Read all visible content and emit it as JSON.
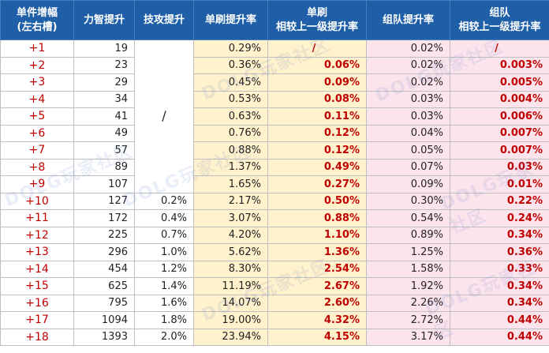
{
  "headers": {
    "col1_line1": "单件增幅",
    "col1_line2": "(左右槽)",
    "col2": "力智提升",
    "col3": "技攻提升",
    "col4": "单刷提升率",
    "col5_line1": "单刷",
    "col5_line2": "相较上一级提升率",
    "col6": "组队提升率",
    "col7_line1": "组队",
    "col7_line2": "相较上一级提升率"
  },
  "merged_skill_placeholder": "/",
  "watermark": "DOLG玩家社区",
  "rows": [
    {
      "level": "+1",
      "stat": "19",
      "skill": "",
      "solo": "0.29%",
      "solo_delta": "/",
      "team": "0.02%",
      "team_delta": "/"
    },
    {
      "level": "+2",
      "stat": "23",
      "skill": "",
      "solo": "0.36%",
      "solo_delta": "0.06%",
      "team": "0.02%",
      "team_delta": "0.003%"
    },
    {
      "level": "+3",
      "stat": "29",
      "skill": "",
      "solo": "0.45%",
      "solo_delta": "0.09%",
      "team": "0.02%",
      "team_delta": "0.005%"
    },
    {
      "level": "+4",
      "stat": "34",
      "skill": "",
      "solo": "0.53%",
      "solo_delta": "0.08%",
      "team": "0.03%",
      "team_delta": "0.004%"
    },
    {
      "level": "+5",
      "stat": "41",
      "skill": "",
      "solo": "0.63%",
      "solo_delta": "0.11%",
      "team": "0.03%",
      "team_delta": "0.006%"
    },
    {
      "level": "+6",
      "stat": "49",
      "skill": "",
      "solo": "0.76%",
      "solo_delta": "0.12%",
      "team": "0.04%",
      "team_delta": "0.007%"
    },
    {
      "level": "+7",
      "stat": "57",
      "skill": "",
      "solo": "0.88%",
      "solo_delta": "0.12%",
      "team": "0.05%",
      "team_delta": "0.007%"
    },
    {
      "level": "+8",
      "stat": "89",
      "skill": "",
      "solo": "1.37%",
      "solo_delta": "0.49%",
      "team": "0.07%",
      "team_delta": "0.03%"
    },
    {
      "level": "+9",
      "stat": "107",
      "skill": "",
      "solo": "1.65%",
      "solo_delta": "0.27%",
      "team": "0.09%",
      "team_delta": "0.01%"
    },
    {
      "level": "+10",
      "stat": "127",
      "skill": "0.2%",
      "solo": "2.17%",
      "solo_delta": "0.50%",
      "team": "0.30%",
      "team_delta": "0.22%"
    },
    {
      "level": "+11",
      "stat": "172",
      "skill": "0.4%",
      "solo": "3.07%",
      "solo_delta": "0.88%",
      "team": "0.54%",
      "team_delta": "0.24%"
    },
    {
      "level": "+12",
      "stat": "225",
      "skill": "0.7%",
      "solo": "4.20%",
      "solo_delta": "1.10%",
      "team": "0.89%",
      "team_delta": "0.34%"
    },
    {
      "level": "+13",
      "stat": "296",
      "skill": "1.0%",
      "solo": "5.62%",
      "solo_delta": "1.36%",
      "team": "1.25%",
      "team_delta": "0.36%"
    },
    {
      "level": "+14",
      "stat": "454",
      "skill": "1.2%",
      "solo": "8.30%",
      "solo_delta": "2.54%",
      "team": "1.58%",
      "team_delta": "0.33%"
    },
    {
      "level": "+15",
      "stat": "625",
      "skill": "1.4%",
      "solo": "11.19%",
      "solo_delta": "2.67%",
      "team": "1.92%",
      "team_delta": "0.34%"
    },
    {
      "level": "+16",
      "stat": "795",
      "skill": "1.6%",
      "solo": "14.07%",
      "solo_delta": "2.60%",
      "team": "2.26%",
      "team_delta": "0.34%"
    },
    {
      "level": "+17",
      "stat": "1094",
      "skill": "1.8%",
      "solo": "19.00%",
      "solo_delta": "4.32%",
      "team": "2.72%",
      "team_delta": "0.44%"
    },
    {
      "level": "+18",
      "stat": "1393",
      "skill": "2.0%",
      "solo": "23.94%",
      "solo_delta": "4.15%",
      "team": "3.17%",
      "team_delta": "0.44%"
    }
  ],
  "colors": {
    "header_bg": "#1f5fa8",
    "header_text": "#ffffff",
    "level_text": "#c00000",
    "delta_text": "#c00000",
    "solo_bg": "#fff2cc",
    "team_bg": "#fce4ec"
  }
}
